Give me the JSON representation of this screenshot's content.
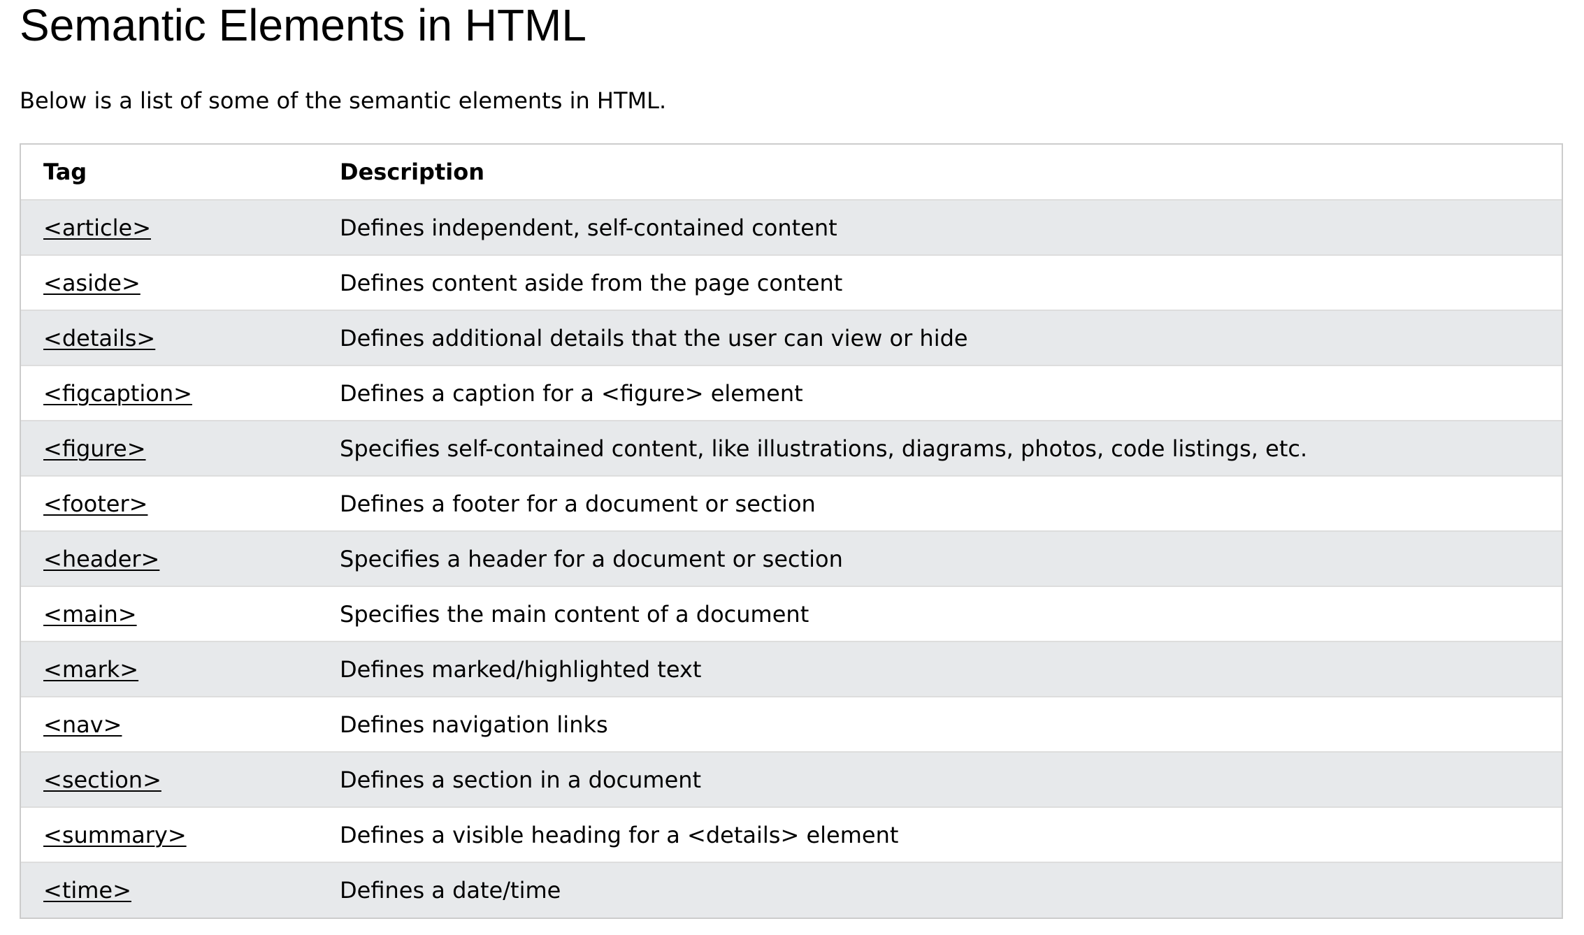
{
  "page": {
    "title": "Semantic Elements in HTML",
    "intro": "Below is a list of some of the semantic elements in HTML."
  },
  "table": {
    "headers": {
      "tag": "Tag",
      "description": "Description"
    },
    "rows": [
      {
        "tag": "<article>",
        "description": "Defines independent, self-contained content"
      },
      {
        "tag": "<aside>",
        "description": "Defines content aside from the page content"
      },
      {
        "tag": "<details>",
        "description": "Defines additional details that the user can view or hide"
      },
      {
        "tag": "<figcaption>",
        "description": "Defines a caption for a <figure> element"
      },
      {
        "tag": "<figure>",
        "description": "Specifies self-contained content, like illustrations, diagrams, photos, code listings, etc."
      },
      {
        "tag": "<footer>",
        "description": "Defines a footer for a document or section"
      },
      {
        "tag": "<header>",
        "description": "Specifies a header for a document or section"
      },
      {
        "tag": "<main>",
        "description": "Specifies the main content of a document"
      },
      {
        "tag": "<mark>",
        "description": "Defines marked/highlighted text"
      },
      {
        "tag": "<nav>",
        "description": "Defines navigation links"
      },
      {
        "tag": "<section>",
        "description": "Defines a section in a document"
      },
      {
        "tag": "<summary>",
        "description": "Defines a visible heading for a <details> element"
      },
      {
        "tag": "<time>",
        "description": "Defines a date/time"
      }
    ]
  },
  "colors": {
    "row_striped": "#e7e9eb",
    "row_plain": "#ffffff",
    "border": "#cccccc",
    "text": "#000000"
  }
}
